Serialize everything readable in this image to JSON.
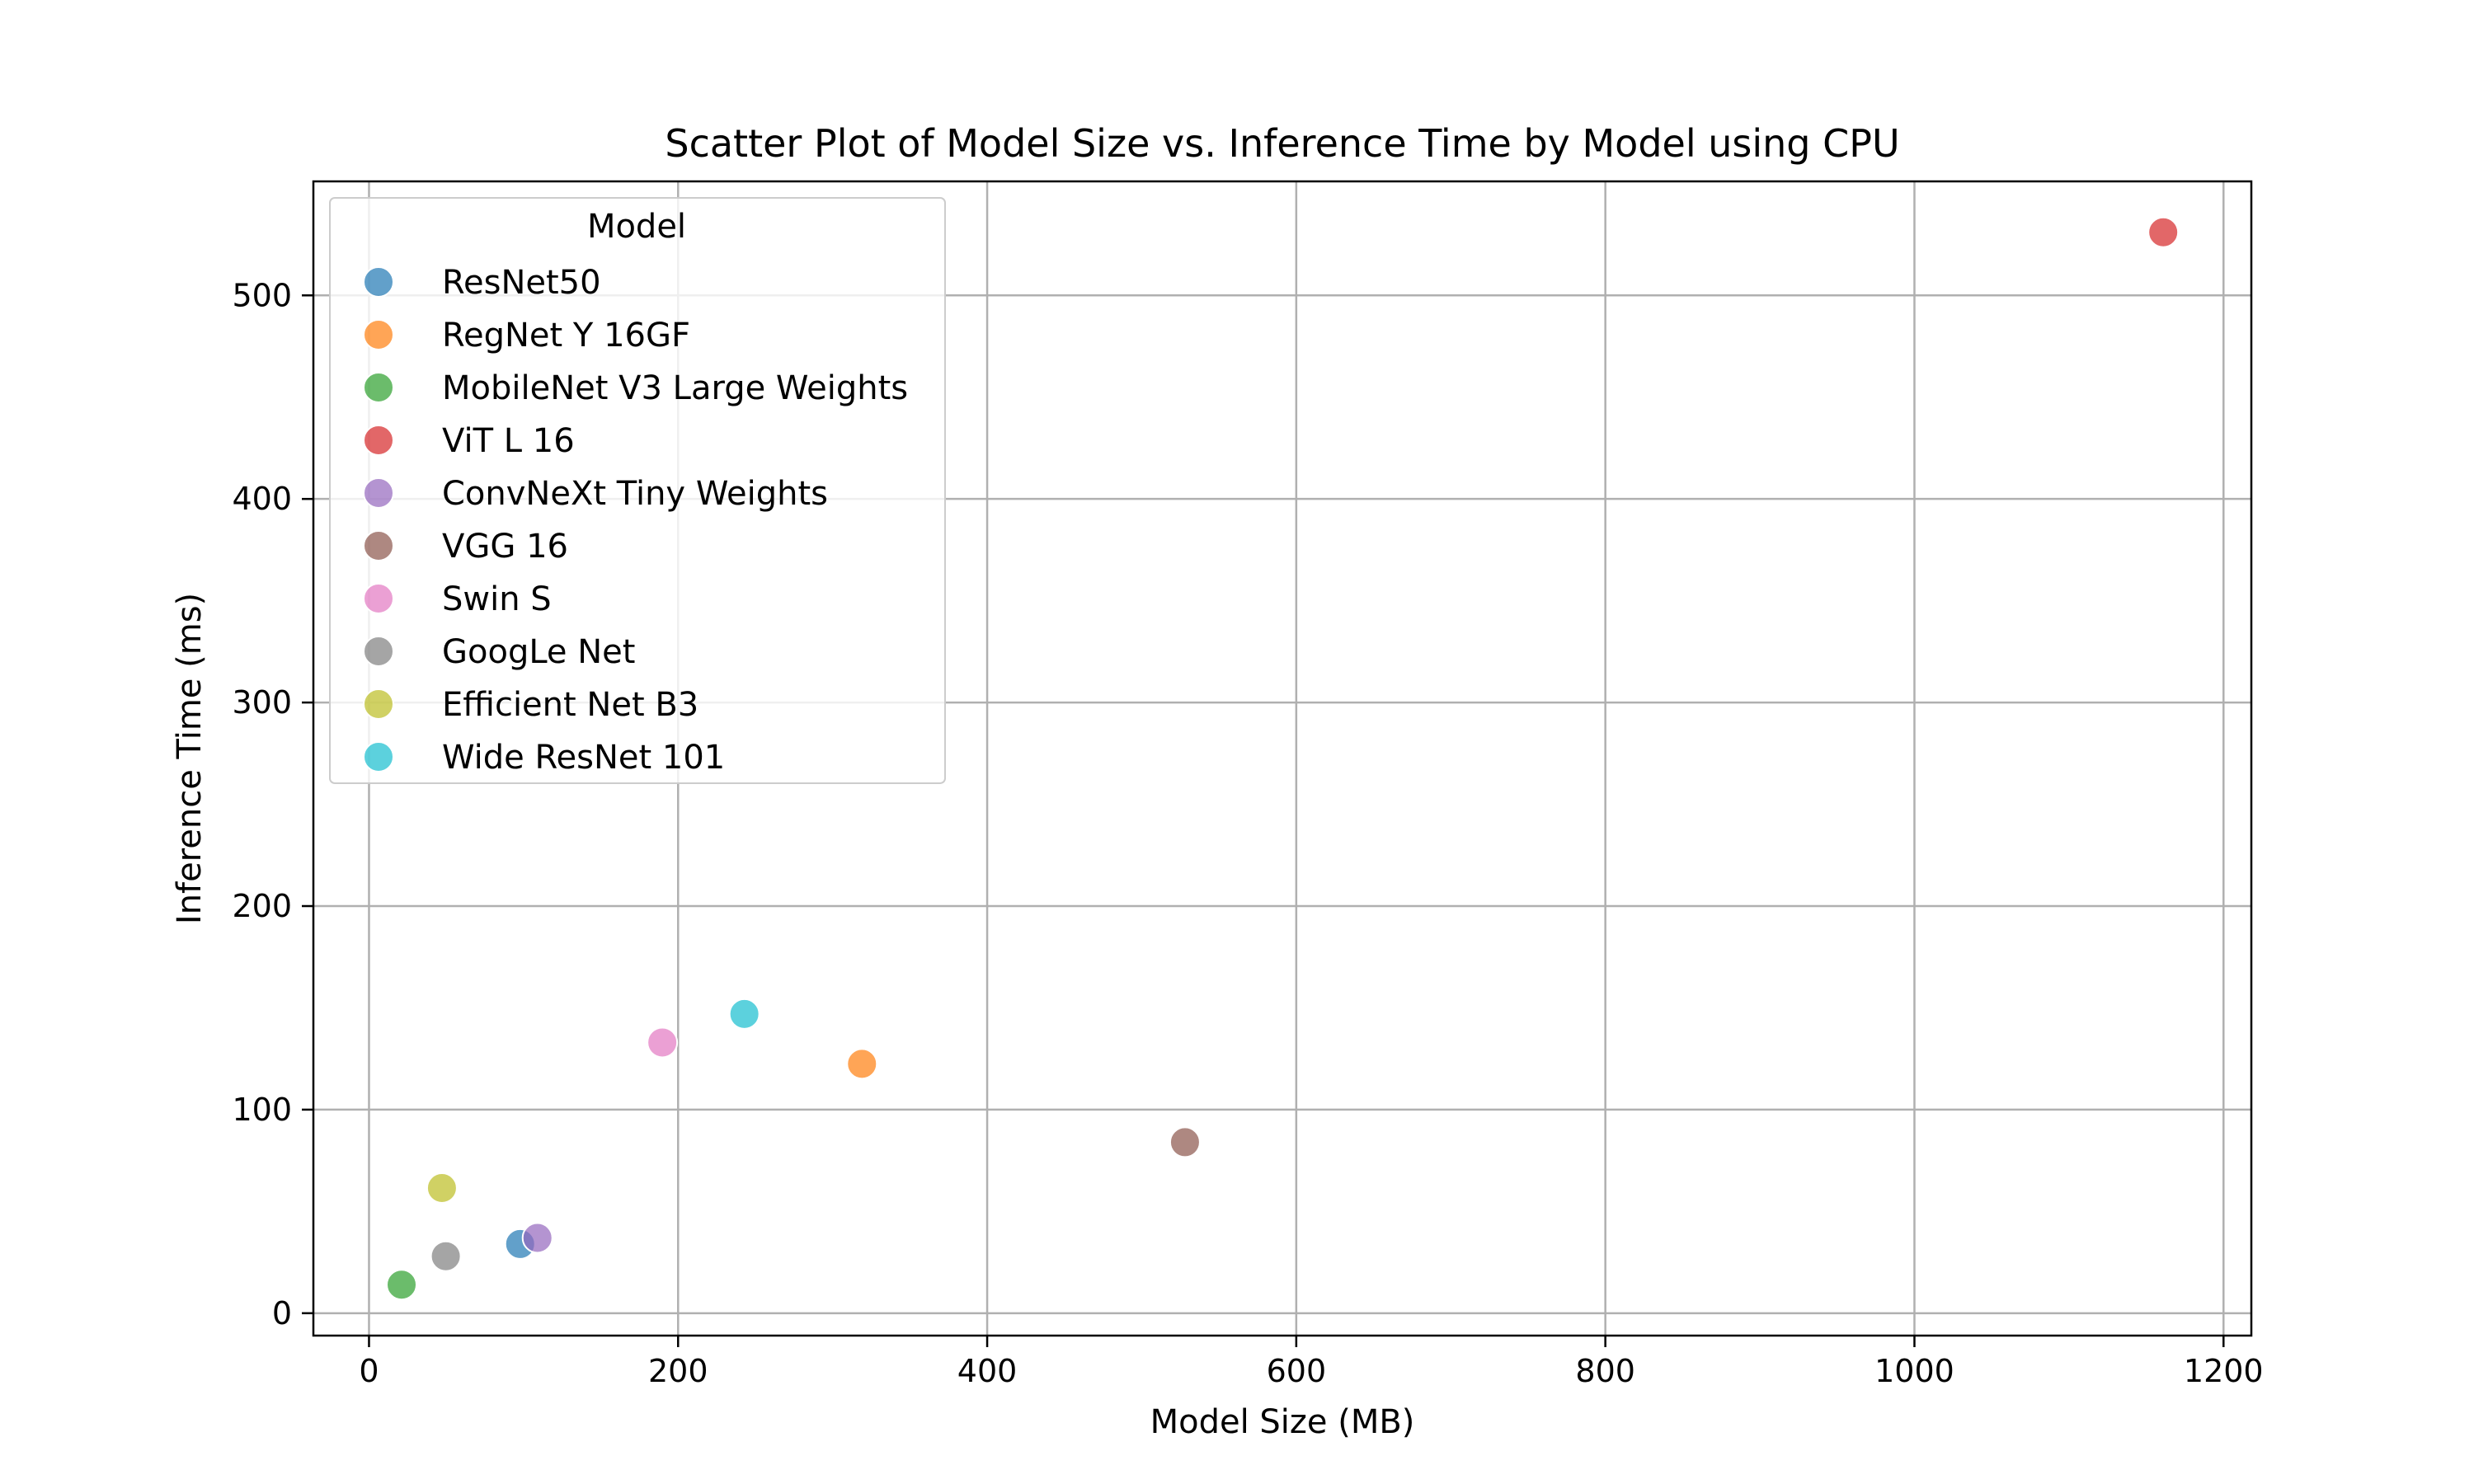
{
  "chart_data": {
    "type": "scatter",
    "title": "Scatter Plot of Model Size vs. Inference Time by Model using CPU",
    "xlabel": "Model Size (MB)",
    "ylabel": "Inference Time (ms)",
    "xlim": [
      -36,
      1218
    ],
    "ylim": [
      -11,
      556
    ],
    "x_ticks": [
      0,
      200,
      400,
      600,
      800,
      1000,
      1200
    ],
    "y_ticks": [
      0,
      100,
      200,
      300,
      400,
      500
    ],
    "grid": true,
    "legend": {
      "title": "Model",
      "placement": "top-left"
    },
    "series": [
      {
        "name": "ResNet50",
        "color": "#1f77b4",
        "x": [
          97.8
        ],
        "y": [
          34
        ]
      },
      {
        "name": "RegNet Y 16GF",
        "color": "#ff7f0e",
        "x": [
          319
        ],
        "y": [
          122.5
        ]
      },
      {
        "name": "MobileNet V3 Large Weights",
        "color": "#2ca02c",
        "x": [
          21.1
        ],
        "y": [
          14
        ]
      },
      {
        "name": "ViT L 16",
        "color": "#d62728",
        "x": [
          1161
        ],
        "y": [
          531
        ]
      },
      {
        "name": "ConvNeXt Tiny Weights",
        "color": "#9467bd",
        "x": [
          109
        ],
        "y": [
          37
        ]
      },
      {
        "name": "VGG 16",
        "color": "#8c564b",
        "x": [
          528
        ],
        "y": [
          84
        ]
      },
      {
        "name": "Swin S",
        "color": "#e377c2",
        "x": [
          189.8
        ],
        "y": [
          133
        ]
      },
      {
        "name": "GoogLe Net",
        "color": "#7f7f7f",
        "x": [
          49.7
        ],
        "y": [
          28
        ]
      },
      {
        "name": "Efficient Net B3",
        "color": "#bcbd22",
        "x": [
          47.2
        ],
        "y": [
          61.5
        ]
      },
      {
        "name": "Wide ResNet 101",
        "color": "#17becf",
        "x": [
          242.9
        ],
        "y": [
          147
        ]
      }
    ]
  }
}
